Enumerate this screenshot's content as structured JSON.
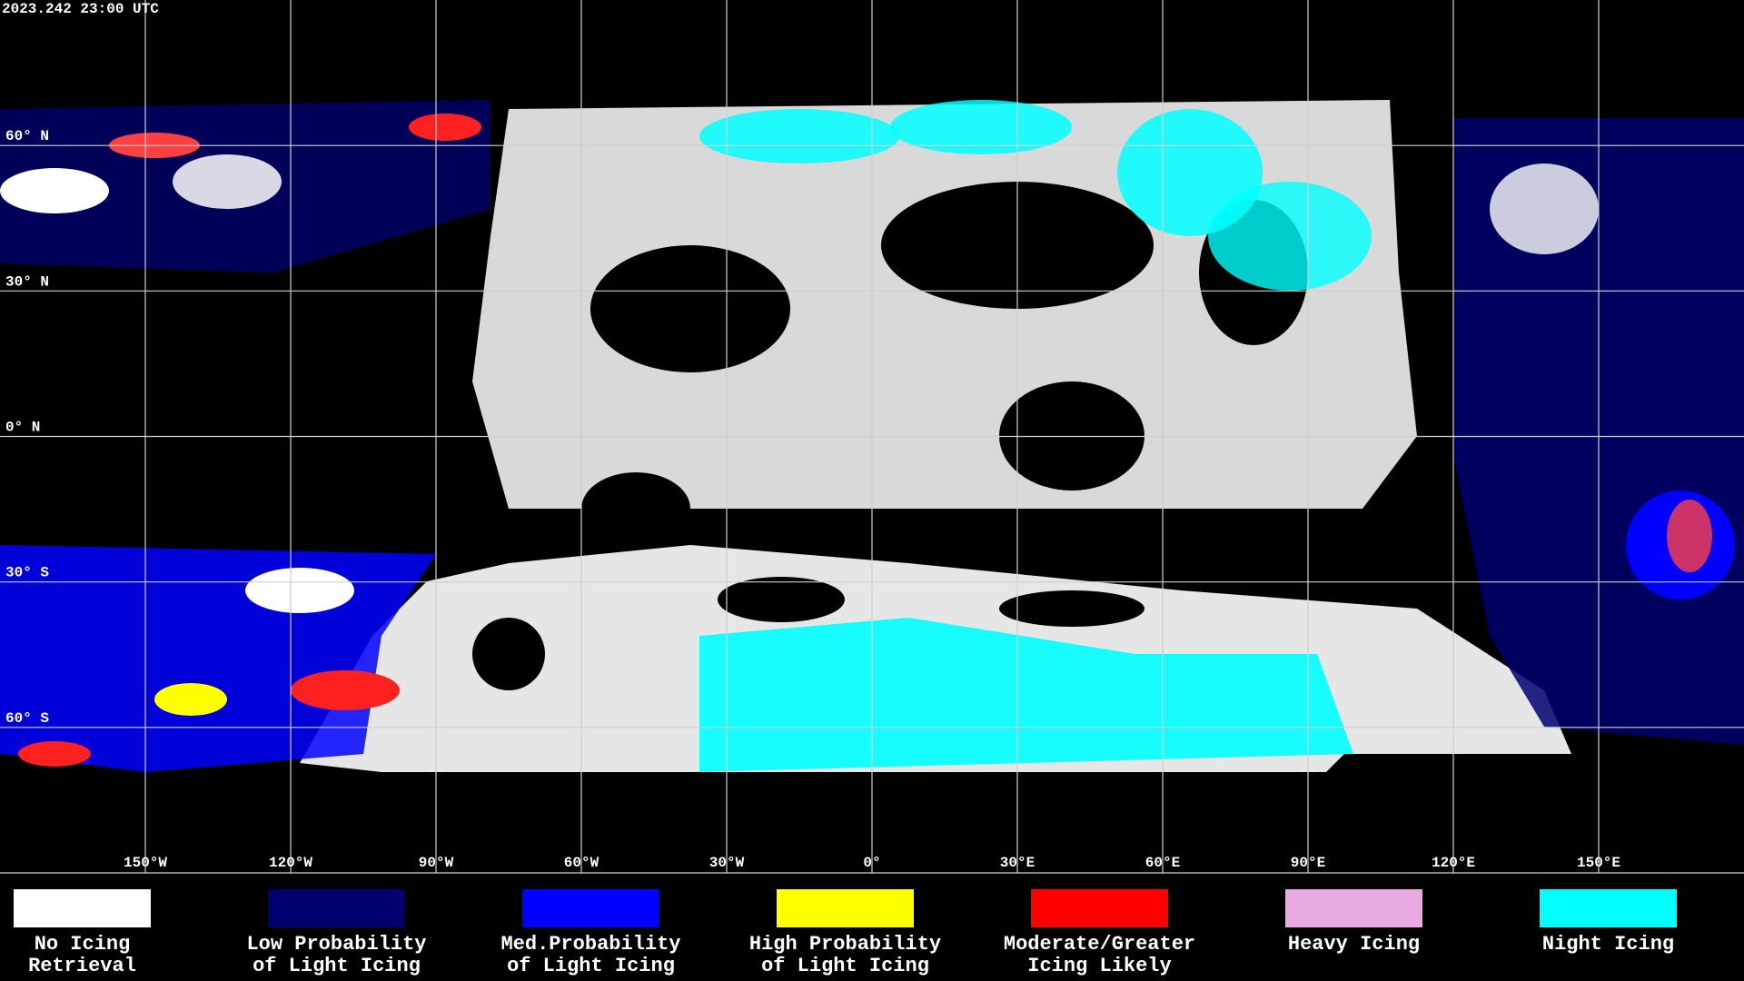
{
  "timestamp": "2023.242 23:00 UTC",
  "map": {
    "latitudes": [
      {
        "value": 60,
        "label": "60° N"
      },
      {
        "value": 30,
        "label": "30° N"
      },
      {
        "value": 0,
        "label": "0° N"
      },
      {
        "value": -30,
        "label": "30° S"
      },
      {
        "value": -60,
        "label": "60° S"
      }
    ],
    "longitudes": [
      {
        "value": -150,
        "label": "150°W"
      },
      {
        "value": -120,
        "label": "120°W"
      },
      {
        "value": -90,
        "label": "90°W"
      },
      {
        "value": -60,
        "label": "60°W"
      },
      {
        "value": -30,
        "label": "30°W"
      },
      {
        "value": 0,
        "label": "0°"
      },
      {
        "value": 30,
        "label": "30°E"
      },
      {
        "value": 60,
        "label": "60°E"
      },
      {
        "value": 90,
        "label": "90°E"
      },
      {
        "value": 120,
        "label": "120°E"
      },
      {
        "value": 150,
        "label": "150°E"
      }
    ]
  },
  "legend": [
    {
      "lines": [
        "No Icing",
        "Retrieval"
      ],
      "color": "#ffffff"
    },
    {
      "lines": [
        "Low Probability",
        "of Light Icing"
      ],
      "color": "#00006e"
    },
    {
      "lines": [
        "Med.Probability",
        "of Light Icing"
      ],
      "color": "#0000ff"
    },
    {
      "lines": [
        "High Probability",
        "of Light Icing"
      ],
      "color": "#ffff00"
    },
    {
      "lines": [
        "Moderate/Greater",
        "Icing Likely"
      ],
      "color": "#ff0000"
    },
    {
      "lines": [
        "Heavy Icing"
      ],
      "color": "#e8aae0"
    },
    {
      "lines": [
        "Night Icing"
      ],
      "color": "#00ffff"
    }
  ]
}
